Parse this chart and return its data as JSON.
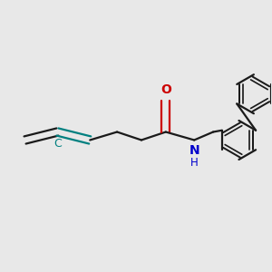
{
  "background_color": "#e8e8e8",
  "bond_color": "#1a1a1a",
  "o_color": "#cc0000",
  "n_color": "#0000cc",
  "c_allene_color": "#008080",
  "line_width": 1.6,
  "figsize": [
    3.0,
    3.0
  ],
  "dpi": 100,
  "xlim": [
    0,
    10
  ],
  "ylim": [
    0,
    10
  ]
}
